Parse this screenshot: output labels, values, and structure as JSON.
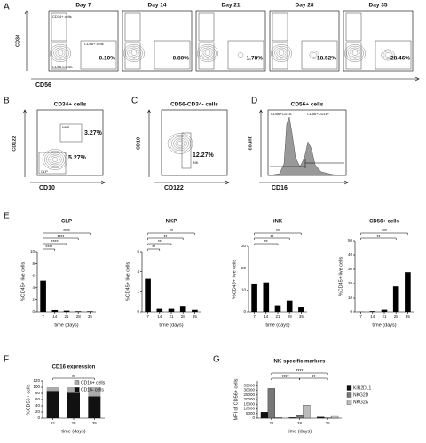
{
  "letters": [
    "A",
    "B",
    "C",
    "D",
    "E",
    "F",
    "G"
  ],
  "flow": {
    "A": {
      "titles": [
        "Day 7",
        "Day 14",
        "Day 21",
        "Day 28",
        "Day 35"
      ],
      "percents": [
        "0.10%",
        "0.80%",
        "1.78%",
        "18.52%",
        "28.46%"
      ],
      "gates": [
        "CD34+ cells",
        "CD56+ cells",
        "CD56-CD34-"
      ],
      "y_label": "CD34",
      "x_label": "CD56"
    },
    "B": {
      "title": "CD34+ cells",
      "percents": [
        "3.27%",
        "5.27%"
      ],
      "gates": [
        "NKP",
        "CLP"
      ],
      "y_label": "CD122",
      "x_label": "CD10"
    },
    "C": {
      "title": "CD56-CD34- cells",
      "percent": "12.27%",
      "gate": "iNK",
      "y_label": "CD10",
      "x_label": "CD122"
    },
    "D": {
      "title": "CD56+ cells",
      "gates": [
        "CD56+CD16-",
        "CD56+CD16+"
      ],
      "y_label": "count",
      "x_label": "CD16"
    }
  },
  "chart_data": [
    {
      "type": "bar",
      "title": "CLP",
      "categories": [
        "7",
        "14",
        "21",
        "28",
        "35"
      ],
      "values": [
        5.2,
        0.3,
        0.2,
        0.1,
        0.1
      ],
      "color": "#000000",
      "ylim": [
        0,
        10
      ],
      "yticks": [
        0,
        2,
        4,
        6,
        8,
        10
      ],
      "y_label": "%CD45+ live cells",
      "x_label": "time (days)",
      "annotations": [
        "****",
        "****",
        "****",
        "****"
      ]
    },
    {
      "type": "bar",
      "title": "NKP",
      "categories": [
        "7",
        "14",
        "21",
        "28",
        "35"
      ],
      "values": [
        3.3,
        0.3,
        0.3,
        0.6,
        0.2
      ],
      "color": "#000000",
      "ylim": [
        0,
        6
      ],
      "yticks": [
        0,
        2,
        4,
        6
      ],
      "y_label": "%CD45+ live cells",
      "x_label": "time (days)",
      "annotations": [
        "**",
        "**",
        "**",
        "**"
      ]
    },
    {
      "type": "bar",
      "title": "iNK",
      "categories": [
        "7",
        "14",
        "21",
        "28",
        "35"
      ],
      "values": [
        13,
        13.5,
        3,
        5,
        2
      ],
      "color": "#000000",
      "ylim": [
        0,
        30
      ],
      "yticks": [
        0,
        10,
        20,
        30
      ],
      "y_label": "%CD45+ live cells",
      "x_label": "time (days)",
      "annotations": [
        "**",
        "**",
        "**"
      ]
    },
    {
      "type": "bar",
      "title": "CD56+ cells",
      "categories": [
        "7",
        "14",
        "21",
        "28",
        "35"
      ],
      "values": [
        0.1,
        0.5,
        1.5,
        18,
        28
      ],
      "color": "#000000",
      "ylim": [
        0,
        50
      ],
      "yticks": [
        0,
        10,
        20,
        30,
        40,
        50
      ],
      "y_label": "%CD45+ live cells",
      "x_label": "time (days)",
      "annotations": [
        "**",
        "***"
      ]
    },
    {
      "type": "stacked",
      "title": "CD16 expression",
      "categories": [
        "21",
        "28",
        "35"
      ],
      "series": [
        {
          "name": "CD16- cells",
          "color": "#111111",
          "values": [
            88,
            82,
            70
          ]
        },
        {
          "name": "CD16+ cells",
          "color": "#aaaaaa",
          "values": [
            12,
            18,
            30
          ]
        }
      ],
      "ylim": [
        0,
        120
      ],
      "yticks": [
        0,
        20,
        40,
        60,
        80,
        100,
        120
      ],
      "y_label": "%CD56+ cells",
      "x_label": "time (days)",
      "legend": "upper right",
      "annotations": [
        "**"
      ]
    },
    {
      "type": "bar",
      "title": "NK-specific markers",
      "categories": [
        "21",
        "28",
        "35"
      ],
      "series": [
        {
          "name": "KIR2DL1",
          "color": "#111111",
          "values": [
            6500,
            600,
            1200
          ]
        },
        {
          "name": "NKG2D",
          "color": "#777777",
          "values": [
            32000,
            3500,
            200
          ]
        },
        {
          "name": "NKG2A",
          "color": "#bbbbbb",
          "values": [
            800,
            14000,
            2800
          ]
        }
      ],
      "ylim": [
        0,
        40000
      ],
      "yticks": [
        0,
        5000,
        10000,
        15000,
        20000,
        25000,
        30000,
        35000
      ],
      "y_label": "MFI of CD56+ cells",
      "x_label": "time (days)",
      "legend": "right",
      "annotations": [
        "****",
        "**",
        "****"
      ]
    }
  ]
}
